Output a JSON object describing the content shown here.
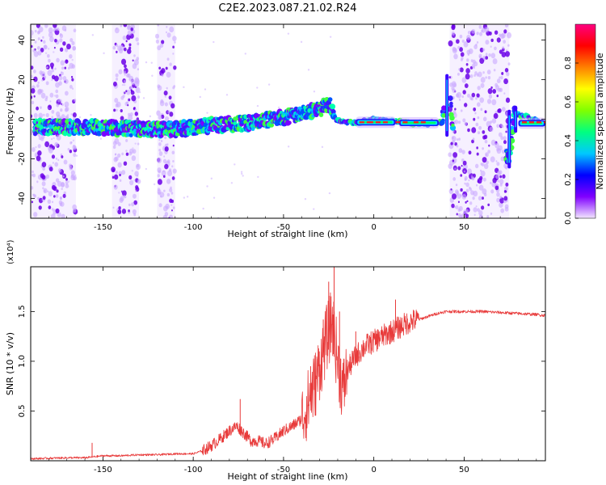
{
  "title": "C2E2.2023.087.21.02.R24",
  "chart_data": [
    {
      "type": "heatmap",
      "xlabel": "Height of straight line (km)",
      "ylabel": "Frequency (Hz)",
      "xlim": [
        -190,
        95
      ],
      "ylim": [
        -50,
        48
      ],
      "xticks": [
        -150,
        -100,
        -50,
        0,
        50
      ],
      "xtick_labels": [
        "-150",
        "-100",
        "-50",
        "0",
        "50"
      ],
      "yticks": [
        -40,
        -20,
        0,
        20,
        40
      ],
      "ytick_labels": [
        "-40",
        "-20",
        "0",
        "20",
        "40"
      ],
      "colorbar": {
        "label": "Normalized spectral amplitude",
        "range": [
          0,
          1
        ],
        "ticks": [
          0.0,
          0.2,
          0.4,
          0.6,
          0.8
        ],
        "tick_labels": [
          "0.0",
          "0.2",
          "0.4",
          "0.6",
          "0.8"
        ],
        "colormap": [
          "#f2e6ff",
          "#8000ff",
          "#0000ff",
          "#00c8ff",
          "#00ff80",
          "#80ff00",
          "#ffff00",
          "#ff8000",
          "#ff0000",
          "#ff0080"
        ]
      },
      "ridge": {
        "x": [
          -190,
          -170,
          -150,
          -130,
          -110,
          -90,
          -70,
          -50,
          -30,
          -25,
          -20,
          -10,
          0,
          10,
          20,
          30,
          38,
          41,
          44,
          75,
          78,
          95
        ],
        "y": [
          -4,
          -4,
          -4,
          -5,
          -5,
          -3,
          -2,
          1,
          5,
          8,
          -1,
          -2,
          0,
          -1,
          -2,
          -2,
          -2,
          20,
          -5,
          -20,
          3,
          -2
        ]
      },
      "noise_bands_x": [
        [
          -190,
          -165
        ],
        [
          -145,
          -130
        ],
        [
          -120,
          -110
        ],
        [
          42,
          75
        ]
      ],
      "grid": false,
      "legend": "none"
    },
    {
      "type": "line",
      "xlabel": "Height of straight line (km)",
      "ylabel": "SNR (10 * v/v)",
      "y_multiplier_label": "(x10⁴)",
      "xlim": [
        -190,
        95
      ],
      "ylim": [
        0,
        1.95
      ],
      "xticks": [
        -150,
        -100,
        -50,
        0,
        50
      ],
      "xtick_labels": [
        "-150",
        "-100",
        "-50",
        "0",
        "50"
      ],
      "yticks": [
        0.5,
        1.0,
        1.5
      ],
      "ytick_labels": [
        "0.5",
        "1.0",
        "1.5"
      ],
      "color": "#e83a3a",
      "x": [
        -190,
        -170,
        -160,
        -150,
        -140,
        -130,
        -120,
        -110,
        -100,
        -95,
        -90,
        -85,
        -80,
        -76,
        -72,
        -68,
        -64,
        -60,
        -55,
        -50,
        -45,
        -40,
        -36,
        -32,
        -28,
        -25,
        -23,
        -20,
        -17,
        -15,
        -10,
        -5,
        0,
        5,
        10,
        15,
        20,
        25,
        30,
        35,
        40,
        50,
        60,
        70,
        80,
        90,
        95
      ],
      "y": [
        0.02,
        0.03,
        0.03,
        0.05,
        0.05,
        0.06,
        0.06,
        0.07,
        0.07,
        0.1,
        0.15,
        0.22,
        0.3,
        0.35,
        0.28,
        0.2,
        0.2,
        0.17,
        0.22,
        0.3,
        0.35,
        0.42,
        0.6,
        0.8,
        1.1,
        1.3,
        1.4,
        1.0,
        0.7,
        0.9,
        1.05,
        1.15,
        1.2,
        1.25,
        1.3,
        1.35,
        1.4,
        1.42,
        1.45,
        1.48,
        1.5,
        1.5,
        1.5,
        1.49,
        1.48,
        1.47,
        1.46
      ],
      "spikes": [
        {
          "x": -156,
          "y": 0.18
        },
        {
          "x": -74,
          "y": 0.62
        },
        {
          "x": -35,
          "y": 0.95
        },
        {
          "x": -28,
          "y": 1.42
        },
        {
          "x": -25,
          "y": 1.8
        },
        {
          "x": -22,
          "y": 2.0
        },
        {
          "x": -19,
          "y": 1.5
        },
        {
          "x": -10,
          "y": 1.3
        },
        {
          "x": 3,
          "y": 1.3
        },
        {
          "x": 12,
          "y": 1.62
        }
      ],
      "grid": false,
      "legend": "none"
    }
  ]
}
